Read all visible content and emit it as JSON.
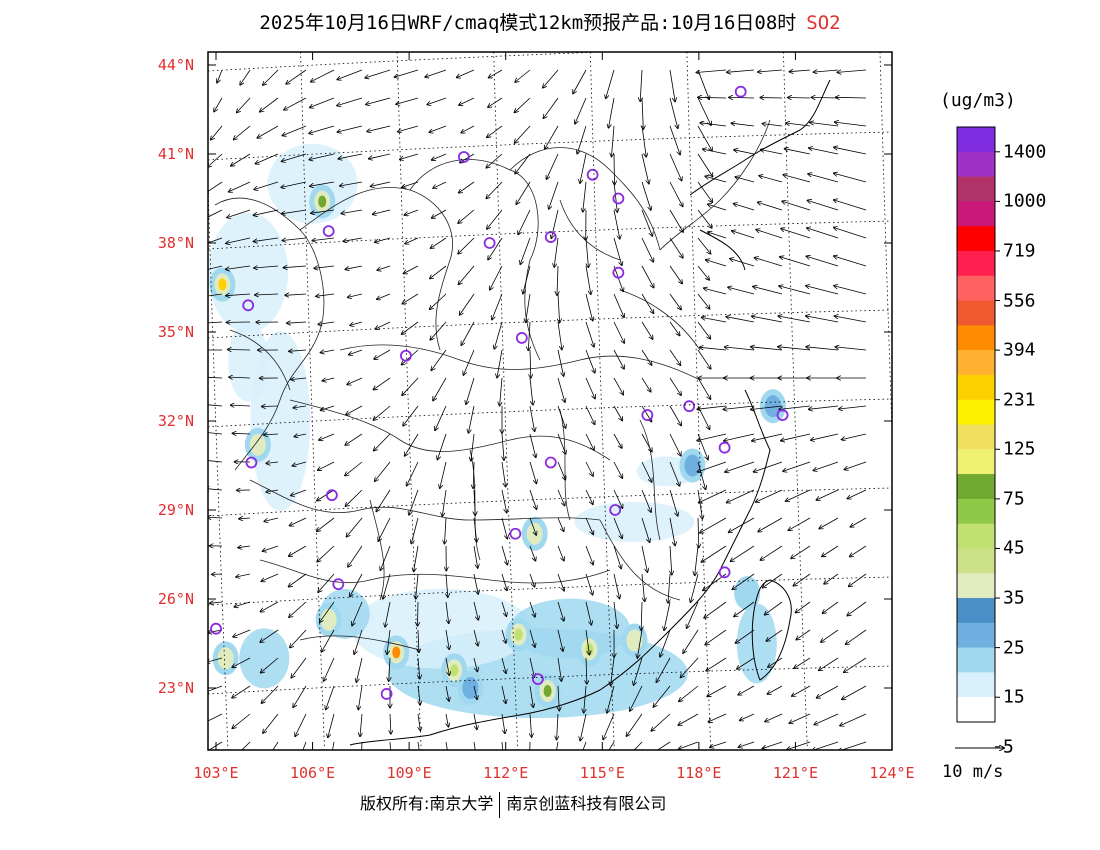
{
  "title": {
    "text": "2025年10月16日WRF/cmaq模式12km预报产品:10月16日08时",
    "pollutant": "SO2"
  },
  "axes": {
    "lat_labels": [
      "44°N",
      "41°N",
      "38°N",
      "35°N",
      "32°N",
      "29°N",
      "26°N",
      "23°N"
    ],
    "lon_labels": [
      "103°E",
      "106°E",
      "109°E",
      "112°E",
      "115°E",
      "118°E",
      "121°E",
      "124°E"
    ]
  },
  "colorbar": {
    "unit": "(ug/m3)",
    "labels": [
      "1400",
      "1000",
      "719",
      "556",
      "394",
      "231",
      "125",
      "75",
      "45",
      "35",
      "25",
      "15",
      "5"
    ],
    "colors": [
      "#7f2be0",
      "#a030c8",
      "#b03268",
      "#c81878",
      "#ff0000",
      "#ff2050",
      "#ff6060",
      "#f05830",
      "#ff8c00",
      "#ffb030",
      "#ffd000",
      "#fff000",
      "#f0e060",
      "#f0f070",
      "#70a830",
      "#90c848",
      "#c0e070",
      "#cce088",
      "#e0ecc0",
      "#4a90c8",
      "#70b0e0",
      "#a0d8f0",
      "#d8f0fc",
      "#ffffff"
    ]
  },
  "wind_legend": {
    "label": "10 m/s"
  },
  "footer": {
    "left": "版权所有:南京大学",
    "right": "南京创蓝科技有限公司"
  },
  "colors": {
    "label_red": "#e0302e",
    "station_marker": "#8a2be2"
  },
  "stations": [
    {
      "lon": 119.3,
      "lat": 43.1
    },
    {
      "lon": 110.7,
      "lat": 40.9
    },
    {
      "lon": 114.7,
      "lat": 40.3
    },
    {
      "lon": 115.5,
      "lat": 39.5
    },
    {
      "lon": 106.5,
      "lat": 38.4
    },
    {
      "lon": 111.5,
      "lat": 38.0
    },
    {
      "lon": 113.4,
      "lat": 38.2
    },
    {
      "lon": 115.5,
      "lat": 37.0
    },
    {
      "lon": 104.0,
      "lat": 35.9
    },
    {
      "lon": 112.5,
      "lat": 34.8
    },
    {
      "lon": 108.9,
      "lat": 34.2
    },
    {
      "lon": 116.4,
      "lat": 32.2
    },
    {
      "lon": 117.7,
      "lat": 32.5
    },
    {
      "lon": 120.6,
      "lat": 32.2
    },
    {
      "lon": 118.8,
      "lat": 31.1
    },
    {
      "lon": 104.1,
      "lat": 30.6
    },
    {
      "lon": 113.4,
      "lat": 30.6
    },
    {
      "lon": 106.6,
      "lat": 29.5
    },
    {
      "lon": 115.4,
      "lat": 29.0
    },
    {
      "lon": 112.3,
      "lat": 28.2
    },
    {
      "lon": 106.8,
      "lat": 26.5
    },
    {
      "lon": 118.8,
      "lat": 26.9
    },
    {
      "lon": 103.0,
      "lat": 25.0
    },
    {
      "lon": 113.0,
      "lat": 23.3
    },
    {
      "lon": 108.3,
      "lat": 22.8
    }
  ],
  "hotspots": [
    {
      "lon": 103.2,
      "lat": 36.6,
      "value": 231
    },
    {
      "lon": 108.6,
      "lat": 24.2,
      "value": 394
    },
    {
      "lon": 113.3,
      "lat": 22.9,
      "value": 75
    },
    {
      "lon": 106.3,
      "lat": 39.4,
      "value": 75
    },
    {
      "lon": 114.6,
      "lat": 24.3,
      "value": 45
    },
    {
      "lon": 112.4,
      "lat": 24.8,
      "value": 45
    },
    {
      "lon": 110.4,
      "lat": 23.6,
      "value": 45
    },
    {
      "lon": 106.5,
      "lat": 25.3,
      "value": 35
    },
    {
      "lon": 104.3,
      "lat": 31.2,
      "value": 35
    },
    {
      "lon": 103.3,
      "lat": 24.0,
      "value": 35
    },
    {
      "lon": 116.0,
      "lat": 24.6,
      "value": 35
    },
    {
      "lon": 112.9,
      "lat": 28.2,
      "value": 35
    },
    {
      "lon": 117.8,
      "lat": 30.5,
      "value": 25
    },
    {
      "lon": 119.5,
      "lat": 26.2,
      "value": 15
    },
    {
      "lon": 120.3,
      "lat": 32.5,
      "value": 25
    },
    {
      "lon": 110.9,
      "lat": 23.0,
      "value": 25
    }
  ]
}
